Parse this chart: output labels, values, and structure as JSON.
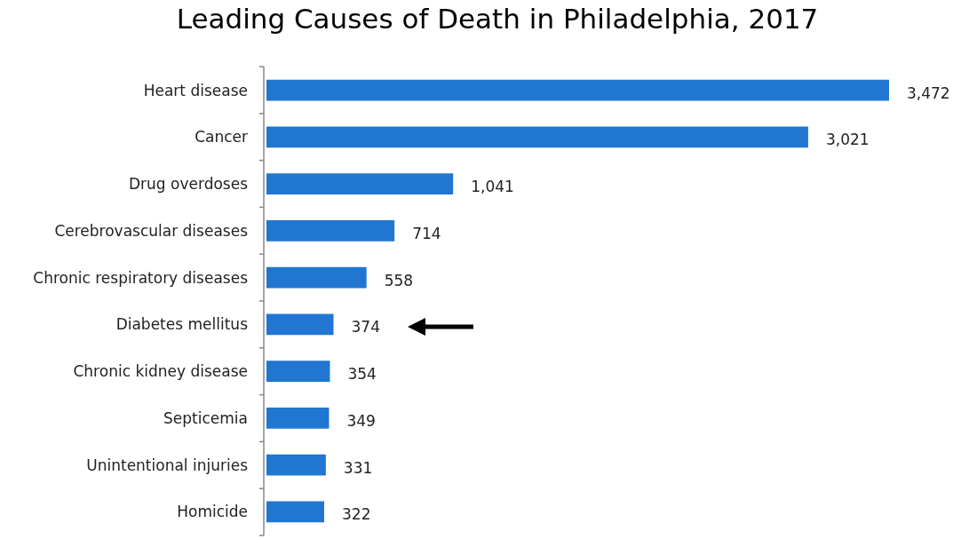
{
  "chart_data": {
    "type": "bar",
    "orientation": "horizontal",
    "title": "Leading Causes of Death in Philadelphia, 2017",
    "categories": [
      "Heart disease",
      "Cancer",
      "Drug overdoses",
      "Cerebrovascular diseases",
      "Chronic respiratory diseases",
      "Diabetes mellitus",
      "Chronic kidney disease",
      "Septicemia",
      "Unintentional injuries",
      "Homicide"
    ],
    "values": [
      3472,
      3021,
      1041,
      714,
      558,
      374,
      354,
      349,
      331,
      322
    ],
    "value_labels": [
      "3,472",
      "3,021",
      "1,041",
      "714",
      "558",
      "374",
      "354",
      "349",
      "331",
      "322"
    ],
    "color": "#2176d2"
  }
}
